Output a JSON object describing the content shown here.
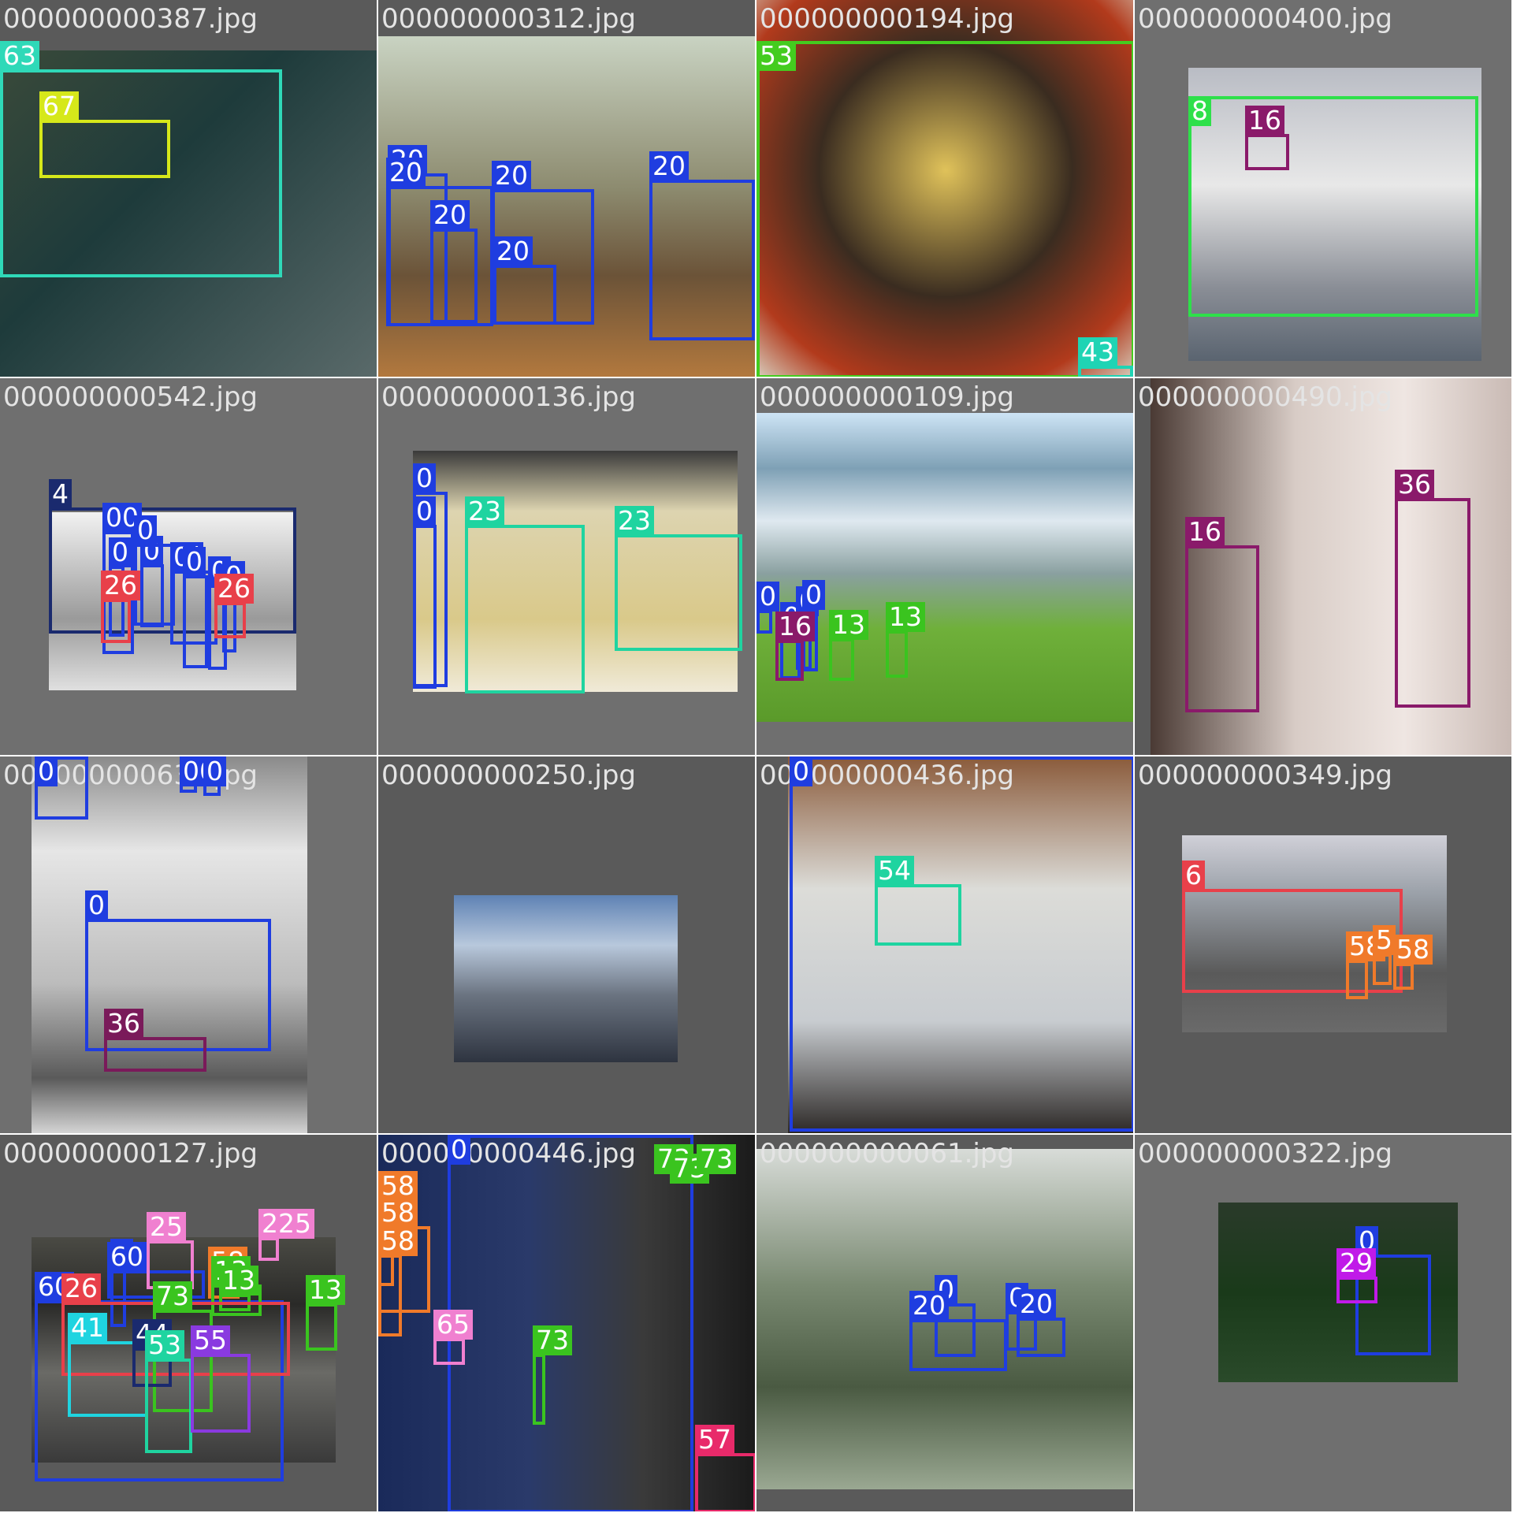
{
  "grid": {
    "columns": 4,
    "tiles": [
      {
        "filename": "000000000387.jpg",
        "bg": "#5a5a5a",
        "photo": {
          "fill": "linear-gradient(135deg,#3a4a3a,#1e3b3b 40%,#5a6a6a)"
        },
        "boxes": [
          {
            "label": "63",
            "color": "#2fd9b8"
          },
          {
            "label": "67",
            "color": "#d6e81a"
          }
        ]
      },
      {
        "filename": "000000000312.jpg",
        "bg": "#5a5a5a",
        "photo": {
          "fill": "linear-gradient(180deg,#c9d3c2,#8c8a6e 45%,#6b5338 70%,#b3793e)"
        },
        "boxes": [
          {
            "label": "20",
            "color": "#1f3de0"
          },
          {
            "label": "20",
            "color": "#1f3de0"
          },
          {
            "label": "20",
            "color": "#1f3de0"
          },
          {
            "label": "20",
            "color": "#1f3de0"
          },
          {
            "label": "20",
            "color": "#1f3de0"
          },
          {
            "label": "20",
            "color": "#1f3de0"
          }
        ]
      },
      {
        "filename": "000000000194.jpg",
        "bg": "#5a5a5a",
        "photo": {
          "fill": "radial-gradient(circle at 50% 45%,#e0c25a,#3a2c20 45%,#b23a1c 80%,#d8d0c0)"
        },
        "boxes": [
          {
            "label": "53",
            "color": "#44cc1f"
          },
          {
            "label": "43",
            "color": "#1fd4b4"
          }
        ]
      },
      {
        "filename": "000000000400.jpg",
        "bg": "#6f6f6f",
        "photo": {
          "fill": "linear-gradient(180deg,#b9bcc4,#e8e8e8 40%,#8a8e96 75%,#5a6470)"
        },
        "boxes": [
          {
            "label": "8",
            "color": "#2ee04a"
          },
          {
            "label": "16",
            "color": "#8a1a6a"
          }
        ]
      },
      {
        "filename": "000000000542.jpg",
        "bg": "#6f6f6f",
        "photo": {
          "fill": "linear-gradient(180deg,#f2f2f2,#9a9a9a 60%,#e0e0e0)"
        },
        "boxes": [
          {
            "label": "4",
            "color": "#1a2a6e"
          },
          {
            "label": "00",
            "color": "#1f3de0"
          },
          {
            "label": "0",
            "color": "#1f3de0"
          },
          {
            "label": "0",
            "color": "#1f3de0"
          },
          {
            "label": "0(",
            "color": "#1f3de0"
          },
          {
            "label": "0",
            "color": "#1f3de0"
          },
          {
            "label": "0",
            "color": "#1f3de0"
          },
          {
            "label": "0",
            "color": "#1f3de0"
          },
          {
            "label": "0",
            "color": "#1f3de0"
          },
          {
            "label": "26",
            "color": "#e8404a"
          },
          {
            "label": "26",
            "color": "#e8404a"
          }
        ]
      },
      {
        "filename": "000000000136.jpg",
        "bg": "#6f6f6f",
        "photo": {
          "fill": "linear-gradient(180deg,#3a3a3a,#ddd4b0 25%,#d9c98a 70%,#f0ead8)"
        },
        "boxes": [
          {
            "label": "0",
            "color": "#1f3de0"
          },
          {
            "label": "0",
            "color": "#1f3de0"
          },
          {
            "label": "23",
            "color": "#1fd4a0"
          },
          {
            "label": "23",
            "color": "#1fd4a0"
          }
        ]
      },
      {
        "filename": "000000000109.jpg",
        "bg": "#6f6f6f",
        "photo": {
          "fill": "linear-gradient(180deg,#cde4f5,#7ea0b5 18%,#dfe9f0 35%,#8aa0a0 52%,#6fb03a 70%,#5a9a2a)"
        },
        "boxes": [
          {
            "label": "0",
            "color": "#1f3de0"
          },
          {
            "label": "0",
            "color": "#1f3de0"
          },
          {
            "label": "0",
            "color": "#1f3de0"
          },
          {
            "label": "0",
            "color": "#1f3de0"
          },
          {
            "label": "16",
            "color": "#8a1a6a"
          },
          {
            "label": "13",
            "color": "#3ac41f"
          },
          {
            "label": "13",
            "color": "#3ac41f"
          }
        ]
      },
      {
        "filename": "000000000490.jpg",
        "bg": "#5a5a5a",
        "photo": {
          "fill": "linear-gradient(90deg,#4a3a34,#d8ccc6 40%,#efe6e2 70%,#c9bab4)"
        },
        "boxes": [
          {
            "label": "16",
            "color": "#8a1a6a"
          },
          {
            "label": "36",
            "color": "#8a1a6a"
          }
        ]
      },
      {
        "filename": "000000000634.jpg",
        "bg": "#6f6f6f",
        "photo": {
          "fill": "linear-gradient(180deg,#8a8a8a,#e6e6e6 25%,#bcbcbc 60%,#5a5a5a 85%,#d8d8d8)"
        },
        "boxes": [
          {
            "label": "0",
            "color": "#1f3de0"
          },
          {
            "label": "00",
            "color": "#1f3de0"
          },
          {
            "label": "0",
            "color": "#1f3de0"
          },
          {
            "label": "0",
            "color": "#1f3de0"
          },
          {
            "label": "36",
            "color": "#7a1a5a"
          }
        ]
      },
      {
        "filename": "000000000250.jpg",
        "bg": "#5a5a5a",
        "photo": {
          "fill": "linear-gradient(180deg,#5e82b4,#b8c8dc 30%,#6a7380 60%,#2e3440)"
        },
        "boxes": []
      },
      {
        "filename": "000000000436.jpg",
        "bg": "#5a5a5a",
        "photo": {
          "fill": "linear-gradient(180deg,#8a5a3a,#dcdcd8 35%,#c8ccd0 70%,#2a2624)"
        },
        "boxes": [
          {
            "label": "0",
            "color": "#1f3de0"
          },
          {
            "label": "54",
            "color": "#1fd4a0"
          }
        ]
      },
      {
        "filename": "000000000349.jpg",
        "bg": "#5a5a5a",
        "photo": {
          "fill": "linear-gradient(180deg,#d0d0d8,#9aa0a8 30%,#5a5a5a 70%,#6a6a6a)"
        },
        "boxes": [
          {
            "label": "6",
            "color": "#e8404a"
          },
          {
            "label": "58",
            "color": "#f07a2a"
          },
          {
            "label": "5",
            "color": "#f07a2a"
          },
          {
            "label": "58",
            "color": "#f07a2a"
          }
        ]
      },
      {
        "filename": "000000000127.jpg",
        "bg": "#5a5a5a",
        "photo": {
          "fill": "linear-gradient(180deg,#4a4a44,#2a2a28 30%,#6a6a66 60%,#3a3a3a)"
        },
        "boxes": [
          {
            "label": "60",
            "color": "#1f3de0"
          },
          {
            "label": "0",
            "color": "#1f3de0"
          },
          {
            "label": "60",
            "color": "#1f3de0"
          },
          {
            "label": "25",
            "color": "#f080d0"
          },
          {
            "label": "225",
            "color": "#f080d0"
          },
          {
            "label": "58",
            "color": "#f07a2a"
          },
          {
            "label": "13",
            "color": "#3ac41f"
          },
          {
            "label": "13",
            "color": "#3ac41f"
          },
          {
            "label": "13",
            "color": "#3ac41f"
          },
          {
            "label": "26",
            "color": "#e8404a"
          },
          {
            "label": "73",
            "color": "#3ac41f"
          },
          {
            "label": "41",
            "color": "#1fd4e0"
          },
          {
            "label": "44",
            "color": "#1a2a6e"
          },
          {
            "label": "53",
            "color": "#1fd4a0"
          },
          {
            "label": "55",
            "color": "#8a3ae0"
          }
        ]
      },
      {
        "filename": "000000000446.jpg",
        "bg": "#5a5a5a",
        "photo": {
          "fill": "linear-gradient(90deg,#1a2a5a,#2a3a6a 40%,#3a3a3a 70%,#1a1a1a)"
        },
        "boxes": [
          {
            "label": "0",
            "color": "#1f3de0"
          },
          {
            "label": "58",
            "color": "#f07a2a"
          },
          {
            "label": "58",
            "color": "#f07a2a"
          },
          {
            "label": "58",
            "color": "#f07a2a"
          },
          {
            "label": "65",
            "color": "#f080d0"
          },
          {
            "label": "73",
            "color": "#3ac41f"
          },
          {
            "label": "73",
            "color": "#3ac41f"
          },
          {
            "label": "73",
            "color": "#3ac41f"
          },
          {
            "label": "73",
            "color": "#3ac41f"
          },
          {
            "label": "57",
            "color": "#e82a6a"
          }
        ]
      },
      {
        "filename": "000000000061.jpg",
        "bg": "#5a5a5a",
        "photo": {
          "fill": "linear-gradient(180deg,#d8dcd8,#7a8a72 40%,#4a5a42 70%,#9aa892)"
        },
        "boxes": [
          {
            "label": "0",
            "color": "#1f3de0"
          },
          {
            "label": "0",
            "color": "#1f3de0"
          },
          {
            "label": "20",
            "color": "#1f3de0"
          },
          {
            "label": "20",
            "color": "#1f3de0"
          }
        ]
      },
      {
        "filename": "000000000322.jpg",
        "bg": "#6f6f6f",
        "photo": {
          "fill": "linear-gradient(180deg,#2a3a2a,#1a3a1a 50%,#2a4a2a)"
        },
        "boxes": [
          {
            "label": "0",
            "color": "#1f3de0"
          },
          {
            "label": "29",
            "color": "#c01ae8"
          }
        ]
      }
    ]
  }
}
